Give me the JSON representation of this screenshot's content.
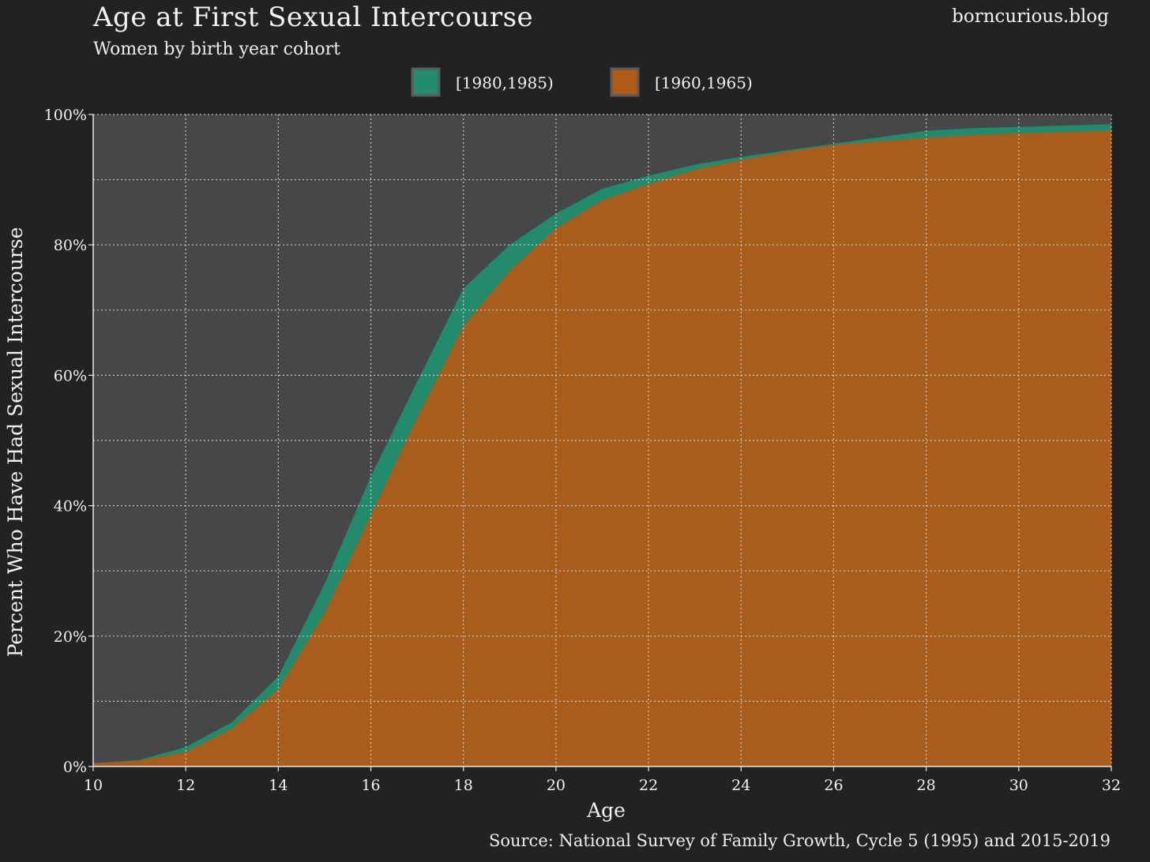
{
  "header": {
    "title": "Age at First Sexual Intercourse",
    "subtitle": "Women by birth year cohort",
    "brand": "borncurious.blog"
  },
  "footer": {
    "source": "Source: National Survey of Family Growth, Cycle 5 (1995) and 2015-2019"
  },
  "colors": {
    "background": "#212224",
    "panel": "#464749",
    "grid": "#d8d8d8",
    "text": "#f2f2f2"
  },
  "chart_data": {
    "type": "area",
    "title": "Age at First Sexual Intercourse",
    "subtitle": "Women by birth year cohort",
    "xlabel": "Age",
    "ylabel": "Percent Who Have Had Sexual Intercourse",
    "xlim": [
      10,
      32
    ],
    "ylim": [
      0,
      100
    ],
    "x_ticks": [
      10,
      12,
      14,
      16,
      18,
      20,
      22,
      24,
      26,
      28,
      30,
      32
    ],
    "y_ticks": [
      0,
      20,
      40,
      60,
      80,
      100
    ],
    "y_tick_format": "percent",
    "grid": true,
    "legend_position": "top-center",
    "series": [
      {
        "name": "[1980,1985)",
        "color": "#238a6b",
        "x": [
          10,
          11,
          12,
          13,
          14,
          15,
          16,
          17,
          18,
          19,
          20,
          21,
          22,
          23,
          24,
          25,
          26,
          27,
          28,
          29,
          30,
          31,
          32
        ],
        "values": [
          0.5,
          1.0,
          3.0,
          6.8,
          13.8,
          28.0,
          44.5,
          59.0,
          73.3,
          80.0,
          84.8,
          88.6,
          90.6,
          92.3,
          93.5,
          94.5,
          95.5,
          96.5,
          97.5,
          97.9,
          98.1,
          98.3,
          98.5
        ]
      },
      {
        "name": "[1960,1965)",
        "color": "#b05a18",
        "x": [
          10,
          11,
          12,
          13,
          14,
          15,
          16,
          17,
          18,
          19,
          20,
          21,
          22,
          23,
          24,
          25,
          26,
          27,
          28,
          29,
          30,
          31,
          32
        ],
        "values": [
          0.5,
          0.9,
          2.2,
          5.8,
          11.8,
          23.5,
          38.5,
          53.5,
          67.5,
          76.0,
          82.5,
          86.8,
          89.3,
          91.5,
          93.0,
          94.3,
          95.3,
          95.9,
          96.4,
          96.8,
          97.1,
          97.3,
          97.5
        ]
      }
    ]
  }
}
